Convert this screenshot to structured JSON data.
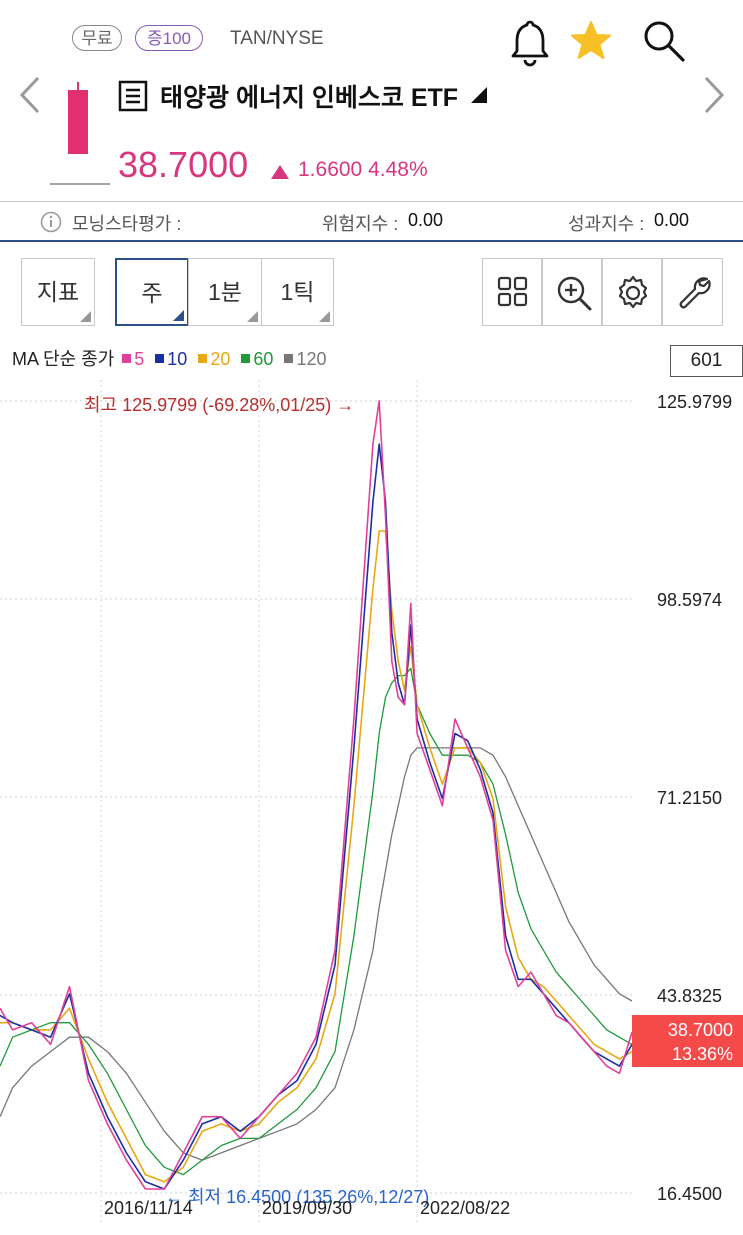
{
  "header": {
    "badges": [
      "무료",
      "증100"
    ],
    "ticker": "TAN/NYSE",
    "title": "태양광 에너지 인베스코 ETF",
    "price": "38.7000",
    "change": "1.6600",
    "change_pct": "4.48%",
    "accent_color": "#d6377f"
  },
  "icons": {
    "alert": "bell-icon",
    "favorite": "star-icon",
    "search": "search-icon",
    "menu": "list-icon",
    "prev": "chevron-left-icon",
    "next": "chevron-right-icon"
  },
  "info": {
    "morningstar_label": "모닝스타평가 :",
    "risk_label": "위험지수 :",
    "risk_value": "0.00",
    "perf_label": "성과지수 :",
    "perf_value": "0.00"
  },
  "toolbar": {
    "indicator": "지표",
    "periods": [
      "주",
      "1분",
      "1틱"
    ],
    "active_period": "주",
    "tools": [
      "grid-icon",
      "zoom-in-icon",
      "gear-icon",
      "wrench-icon"
    ]
  },
  "legend": {
    "prefix": "MA 단순 종가",
    "items": [
      {
        "label": "5",
        "color": "#e0409a"
      },
      {
        "label": "10",
        "color": "#1c2fa0"
      },
      {
        "label": "20",
        "color": "#e8a814"
      },
      {
        "label": "60",
        "color": "#1f9a3a"
      },
      {
        "label": "120",
        "color": "#777777"
      }
    ]
  },
  "chart_data": {
    "type": "line",
    "count": "601",
    "y_ticks": [
      "125.9799",
      "98.5974",
      "71.2150",
      "43.8325",
      "16.4500"
    ],
    "x_ticks": [
      "2016/11/14",
      "2019/09/30",
      "2022/08/22"
    ],
    "ylim": [
      16.45,
      125.9799
    ],
    "current_price": "38.7000",
    "current_pct": "13.36%",
    "high_note": "최고 125.9799 (-69.28%,01/25) →",
    "low_note": "← 최저 16.4500 (135.26%,12/27)",
    "x": [
      0,
      0.02,
      0.05,
      0.08,
      0.11,
      0.14,
      0.17,
      0.2,
      0.23,
      0.26,
      0.29,
      0.32,
      0.35,
      0.38,
      0.41,
      0.44,
      0.47,
      0.5,
      0.53,
      0.56,
      0.59,
      0.6,
      0.61,
      0.62,
      0.63,
      0.64,
      0.65,
      0.66,
      0.68,
      0.7,
      0.72,
      0.74,
      0.76,
      0.78,
      0.8,
      0.82,
      0.84,
      0.86,
      0.88,
      0.9,
      0.92,
      0.94,
      0.96,
      0.98,
      1.0
    ],
    "series": [
      {
        "name": "5",
        "color": "#e0409a",
        "values": [
          42,
          39,
          40,
          37,
          45,
          32,
          26,
          21,
          17,
          17,
          22,
          27,
          27,
          24,
          27,
          30,
          33,
          38,
          50,
          82,
          120,
          126,
          110,
          90,
          85,
          84,
          98,
          80,
          75,
          70,
          82,
          78,
          74,
          68,
          50,
          45,
          47,
          44,
          41,
          40,
          38,
          36,
          34,
          33,
          38.7
        ]
      },
      {
        "name": "10",
        "color": "#1c2fa0",
        "values": [
          41,
          40,
          39,
          38,
          44,
          33,
          27,
          22,
          18,
          17,
          21,
          26,
          27,
          25,
          27,
          30,
          32,
          37,
          48,
          78,
          112,
          120,
          112,
          94,
          87,
          84,
          95,
          82,
          76,
          71,
          80,
          79,
          75,
          69,
          52,
          46,
          46,
          44,
          42,
          40,
          38,
          36,
          35,
          34,
          37
        ]
      },
      {
        "name": "20",
        "color": "#e8a814",
        "values": [
          40,
          40,
          39,
          39,
          42,
          35,
          29,
          24,
          19,
          18,
          20,
          25,
          26,
          25,
          26,
          29,
          31,
          35,
          44,
          70,
          100,
          108,
          108,
          97,
          90,
          86,
          92,
          84,
          78,
          73,
          78,
          78,
          76,
          71,
          56,
          49,
          46,
          45,
          43,
          41,
          39,
          37,
          36,
          35,
          36
        ]
      },
      {
        "name": "60",
        "color": "#1f9a3a",
        "values": [
          34,
          38,
          39,
          40,
          40,
          37,
          33,
          28,
          23,
          20,
          19,
          21,
          23,
          24,
          24,
          26,
          28,
          31,
          36,
          52,
          72,
          80,
          85,
          87,
          88,
          88,
          89,
          84,
          80,
          77,
          77,
          77,
          76,
          73,
          66,
          58,
          53,
          50,
          47,
          45,
          43,
          41,
          39,
          38,
          37
        ]
      },
      {
        "name": "120",
        "color": "#777777",
        "values": [
          27,
          31,
          34,
          36,
          38,
          38,
          36,
          33,
          29,
          25,
          22,
          21,
          22,
          23,
          24,
          25,
          26,
          28,
          31,
          39,
          50,
          56,
          61,
          66,
          70,
          74,
          77,
          78,
          78,
          78,
          78,
          78,
          78,
          77,
          74,
          70,
          66,
          62,
          58,
          54,
          51,
          48,
          46,
          44,
          43
        ]
      }
    ]
  }
}
